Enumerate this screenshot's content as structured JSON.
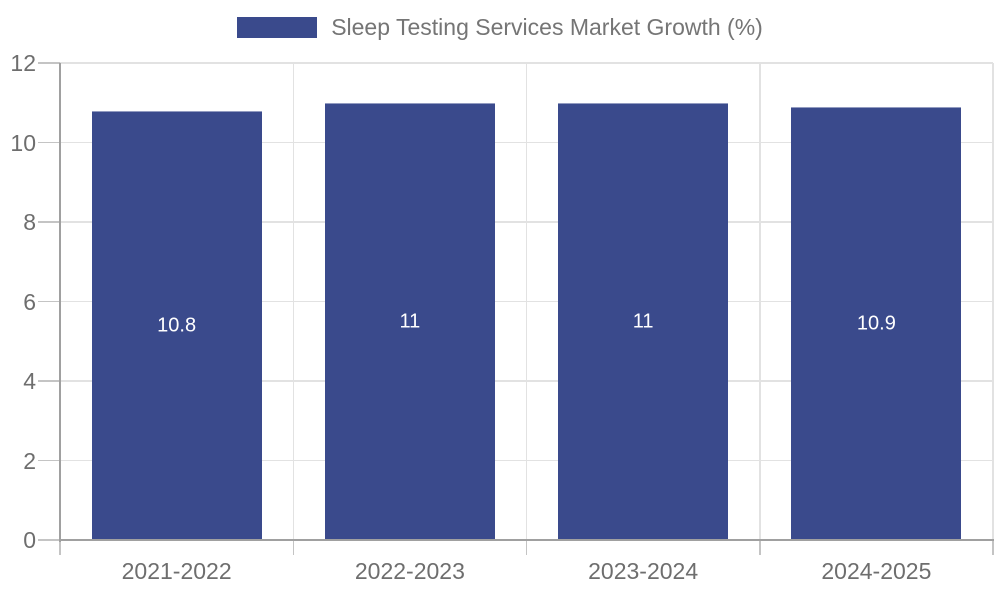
{
  "chart_data": {
    "type": "bar",
    "title": "",
    "legend_label": "Sleep Testing Services Market Growth (%)",
    "legend_position": "top-center",
    "categories": [
      "2021-2022",
      "2022-2023",
      "2023-2024",
      "2024-2025"
    ],
    "values": [
      10.8,
      11,
      11,
      10.9
    ],
    "value_labels": [
      "10.8",
      "11",
      "11",
      "10.9"
    ],
    "xlabel": "",
    "ylabel": "",
    "ylim": [
      0,
      12
    ],
    "yticks": [
      0,
      2,
      4,
      6,
      8,
      10,
      12
    ],
    "grid": true
  },
  "colors": {
    "bar": "#3A4A8C",
    "value_label": "#ffffff",
    "gridline": "#e2e2e2",
    "axis_line": "#a0a0a0",
    "tick": "#c4c4c4",
    "axis_text": "#6e6e6e",
    "legend_text": "#757575",
    "background": "#ffffff"
  }
}
